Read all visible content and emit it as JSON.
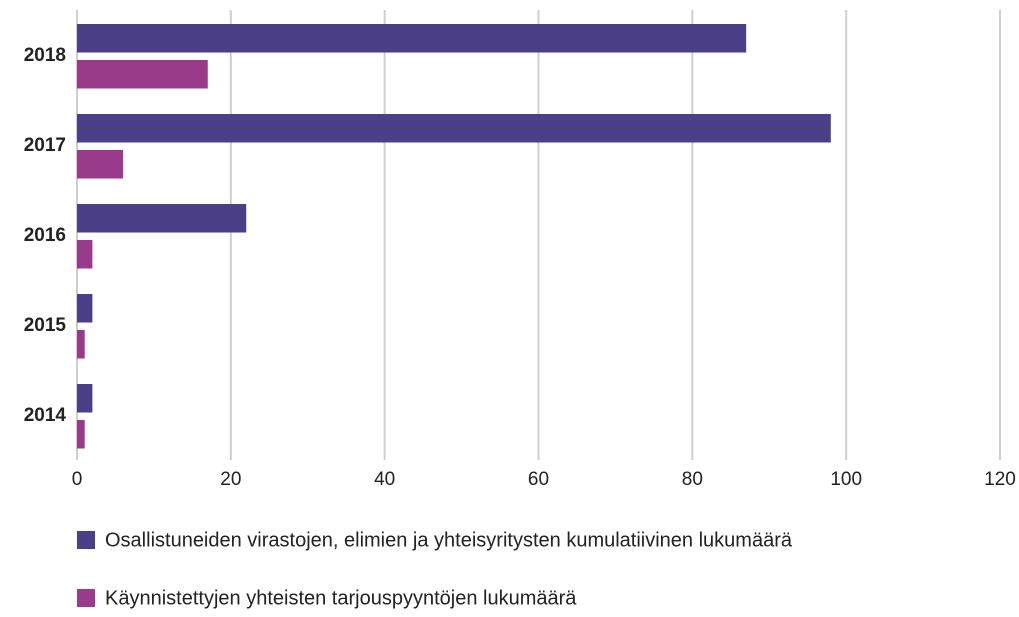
{
  "chart_data": {
    "type": "bar",
    "orientation": "horizontal",
    "categories": [
      "2018",
      "2017",
      "2016",
      "2015",
      "2014"
    ],
    "series": [
      {
        "name": "Osallistuneiden virastojen, elimien ja yhteisyritysten kumulatiivinen lukumäärä",
        "color": "#4b3f87",
        "values": [
          87,
          98,
          22,
          2,
          2
        ]
      },
      {
        "name": "Käynnistettyjen yhteisten tarjouspyyntöjen lukumäärä",
        "color": "#993a8b",
        "values": [
          17,
          6,
          2,
          1,
          1
        ]
      }
    ],
    "xlim": [
      0,
      120
    ],
    "xticks": [
      0,
      20,
      40,
      60,
      80,
      100,
      120
    ],
    "grid": true,
    "legend": "bottom"
  }
}
